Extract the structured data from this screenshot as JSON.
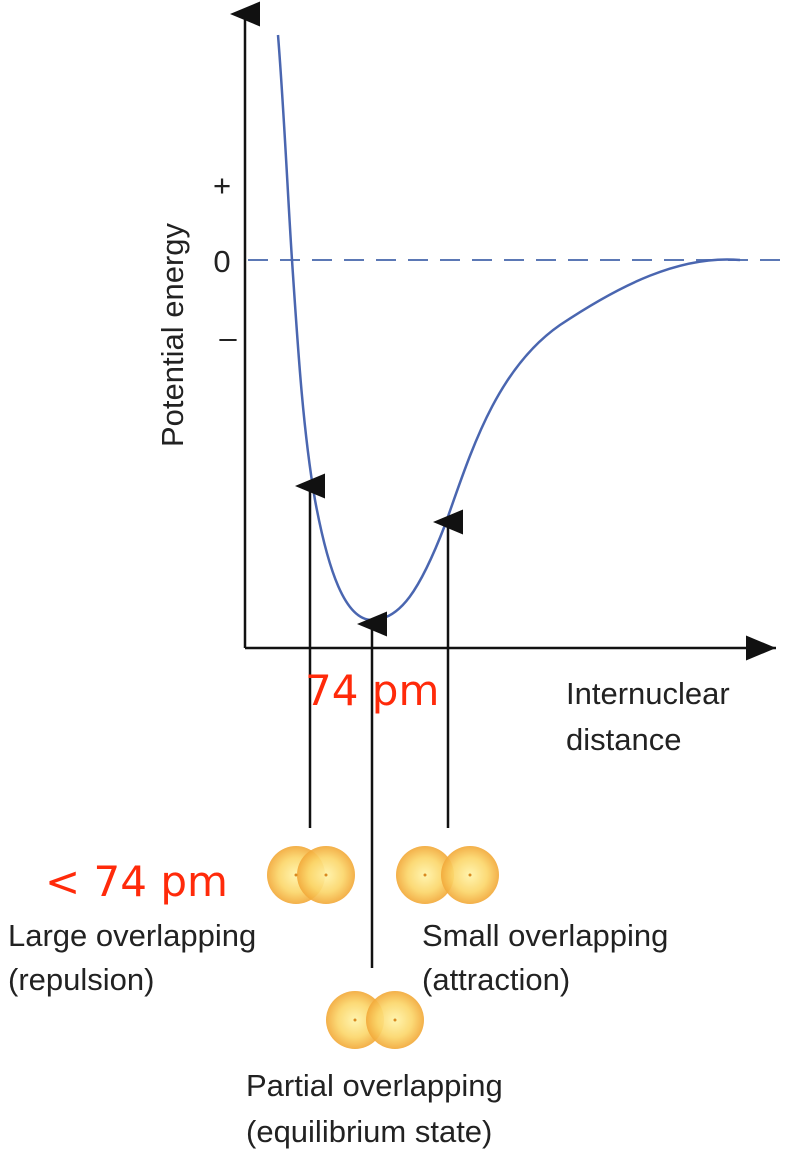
{
  "y_axis": {
    "label": "Potential energy",
    "ticks": [
      "+",
      "0",
      "–"
    ]
  },
  "x_axis": {
    "label": [
      "Internuclear",
      "distance"
    ]
  },
  "annotations": {
    "equilibrium_distance": "74 pm",
    "short_distance": "< 74 pm"
  },
  "states": [
    {
      "title": "Large overlapping",
      "note": "(repulsion)"
    },
    {
      "title": "Small overlapping",
      "note": "(attraction)"
    },
    {
      "title": "Partial overlapping",
      "note": "(equilibrium state)"
    }
  ]
}
